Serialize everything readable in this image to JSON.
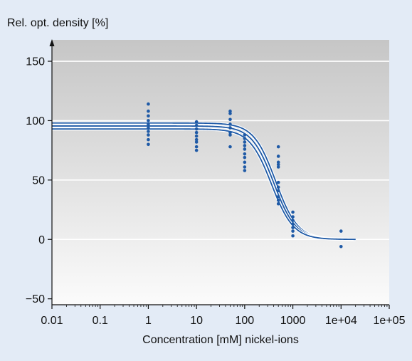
{
  "chart_data": {
    "type": "scatter",
    "title": "",
    "xlabel": "Concentration [mM] nickel-ions",
    "ylabel": "Rel. opt. density [%]",
    "x_scale": "log",
    "xlim": [
      0.01,
      100000
    ],
    "ylim": [
      -55,
      168
    ],
    "x_ticks": [
      0.01,
      0.1,
      1,
      10,
      100,
      1000,
      10000,
      100000
    ],
    "x_tick_labels": [
      "0.01",
      "0.1",
      "1",
      "10",
      "100",
      "1000",
      "1e+04",
      "1e+05"
    ],
    "y_ticks": [
      -50,
      0,
      50,
      100,
      150
    ],
    "y_tick_labels": [
      "−50",
      "0",
      "50",
      "100",
      "150"
    ],
    "grid": "horizontal",
    "colors": {
      "points": "#1f5aa6",
      "curves": "#1f5aa6",
      "background_top": "#c9c9c9",
      "background_bottom": "#fafafa",
      "frame": "#e3ebf6"
    },
    "points": [
      {
        "x": 1,
        "y": 114
      },
      {
        "x": 1,
        "y": 108
      },
      {
        "x": 1,
        "y": 104
      },
      {
        "x": 1,
        "y": 100
      },
      {
        "x": 1,
        "y": 97
      },
      {
        "x": 1,
        "y": 94
      },
      {
        "x": 1,
        "y": 91
      },
      {
        "x": 1,
        "y": 88
      },
      {
        "x": 1,
        "y": 84
      },
      {
        "x": 1,
        "y": 80
      },
      {
        "x": 10,
        "y": 99
      },
      {
        "x": 10,
        "y": 96
      },
      {
        "x": 10,
        "y": 93
      },
      {
        "x": 10,
        "y": 90
      },
      {
        "x": 10,
        "y": 87
      },
      {
        "x": 10,
        "y": 84
      },
      {
        "x": 10,
        "y": 82
      },
      {
        "x": 10,
        "y": 78
      },
      {
        "x": 10,
        "y": 75
      },
      {
        "x": 50,
        "y": 108
      },
      {
        "x": 50,
        "y": 106
      },
      {
        "x": 50,
        "y": 101
      },
      {
        "x": 50,
        "y": 97
      },
      {
        "x": 50,
        "y": 94
      },
      {
        "x": 50,
        "y": 90
      },
      {
        "x": 50,
        "y": 88
      },
      {
        "x": 50,
        "y": 78
      },
      {
        "x": 100,
        "y": 88
      },
      {
        "x": 100,
        "y": 85
      },
      {
        "x": 100,
        "y": 82
      },
      {
        "x": 100,
        "y": 79
      },
      {
        "x": 100,
        "y": 76
      },
      {
        "x": 100,
        "y": 72
      },
      {
        "x": 100,
        "y": 69
      },
      {
        "x": 100,
        "y": 65
      },
      {
        "x": 100,
        "y": 61
      },
      {
        "x": 100,
        "y": 58
      },
      {
        "x": 500,
        "y": 78
      },
      {
        "x": 500,
        "y": 70
      },
      {
        "x": 500,
        "y": 65
      },
      {
        "x": 500,
        "y": 63
      },
      {
        "x": 500,
        "y": 61
      },
      {
        "x": 500,
        "y": 48
      },
      {
        "x": 500,
        "y": 44
      },
      {
        "x": 500,
        "y": 41
      },
      {
        "x": 500,
        "y": 36
      },
      {
        "x": 500,
        "y": 33
      },
      {
        "x": 500,
        "y": 30
      },
      {
        "x": 1000,
        "y": 23
      },
      {
        "x": 1000,
        "y": 19
      },
      {
        "x": 1000,
        "y": 16
      },
      {
        "x": 1000,
        "y": 13
      },
      {
        "x": 1000,
        "y": 10
      },
      {
        "x": 1000,
        "y": 7
      },
      {
        "x": 1000,
        "y": 3
      },
      {
        "x": 10000,
        "y": 7
      },
      {
        "x": 10000,
        "y": -6
      }
    ],
    "curves": [
      {
        "top": 98,
        "bottom": 0,
        "ec50": 440,
        "hill": 1.9
      },
      {
        "top": 95.5,
        "bottom": 0,
        "ec50": 400,
        "hill": 1.9
      },
      {
        "top": 93,
        "bottom": 0,
        "ec50": 360,
        "hill": 1.9
      }
    ],
    "curve_xrange": [
      0.01,
      20000
    ]
  }
}
